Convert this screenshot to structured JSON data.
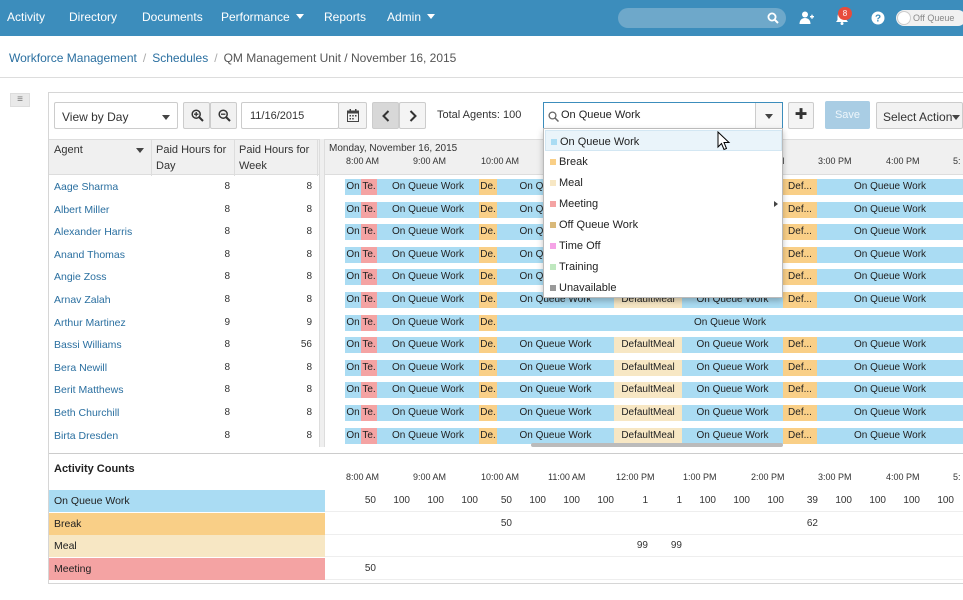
{
  "nav": {
    "items": [
      "Activity",
      "Directory",
      "Documents",
      "Performance",
      "Reports",
      "Admin"
    ],
    "notifications_count": "8",
    "status_toggle": "Off Queue"
  },
  "breadcrumb": {
    "workforce": "Workforce Management",
    "schedules": "Schedules",
    "current": "QM Management Unit / November 16, 2015"
  },
  "toolbar": {
    "view": "View by Day",
    "date": "11/16/2015",
    "total_agents": "Total Agents: 100",
    "activity": "On Queue Work",
    "save": "Save",
    "select_action": "Select Action"
  },
  "dropdown": {
    "items": [
      {
        "label": "On Queue Work",
        "color": "#aadcf3"
      },
      {
        "label": "Break",
        "color": "#f9cf87"
      },
      {
        "label": "Meal",
        "color": "#f7e7c4"
      },
      {
        "label": "Meeting",
        "color": "#f4a3a3"
      },
      {
        "label": "Off Queue Work",
        "color": "#d9b97a"
      },
      {
        "label": "Time Off",
        "color": "#f5a3e6"
      },
      {
        "label": "Training",
        "color": "#bfe8bf"
      },
      {
        "label": "Unavailable",
        "color": "#999999"
      }
    ]
  },
  "grid": {
    "col_agent": "Agent",
    "col_day_1": "Paid Hours for",
    "col_day_2": "Day",
    "col_week_1": "Paid Hours for",
    "col_week_2": "Week",
    "date_label": "Monday, November 16, 2015",
    "ticks": [
      "8:00 AM",
      "9:00 AM",
      "10:00 AM",
      "11:00 AM",
      "12:00 PM",
      "1:00 PM",
      "2:00 PM",
      "3:00 PM",
      "4:00 PM",
      "5:"
    ],
    "agents": [
      {
        "name": "Aage Sharma",
        "day": "8",
        "week": "8"
      },
      {
        "name": "Albert Miller",
        "day": "8",
        "week": "8"
      },
      {
        "name": "Alexander Harris",
        "day": "8",
        "week": "8"
      },
      {
        "name": "Anand Thomas",
        "day": "8",
        "week": "8"
      },
      {
        "name": "Angie Zoss",
        "day": "8",
        "week": "8"
      },
      {
        "name": "Arnav Zalah",
        "day": "8",
        "week": "8"
      },
      {
        "name": "Arthur Martinez",
        "day": "9",
        "week": "9"
      },
      {
        "name": "Bassi Williams",
        "day": "8",
        "week": "56"
      },
      {
        "name": "Bera Newill",
        "day": "8",
        "week": "8"
      },
      {
        "name": "Berit Matthews",
        "day": "8",
        "week": "8"
      },
      {
        "name": "Beth Churchill",
        "day": "8",
        "week": "8"
      },
      {
        "name": "Birta Dresden",
        "day": "8",
        "week": "8"
      }
    ],
    "seg_text": {
      "on": "On",
      "te": "Te.",
      "oq": "On Queue Work",
      "de": "De.",
      "defmeal": "DefaultMeal",
      "def": "Def..."
    }
  },
  "counts": {
    "title": "Activity Counts",
    "rows": [
      {
        "label": "On Queue Work",
        "color": "#aadcf3",
        "values": [
          "50",
          "100",
          "100",
          "100",
          "50",
          "100",
          "100",
          "100",
          "1",
          "1",
          "100",
          "100",
          "100",
          "39",
          "100",
          "100",
          "100",
          "100"
        ]
      },
      {
        "label": "Break",
        "color": "#f9cf87",
        "values": [
          "",
          "",
          "",
          "",
          "50",
          "",
          "",
          "",
          "",
          "",
          "",
          "",
          "",
          "62",
          "",
          "",
          "",
          ""
        ]
      },
      {
        "label": "Meal",
        "color": "#f7e7c4",
        "values": [
          "",
          "",
          "",
          "",
          "",
          "",
          "",
          "",
          "99",
          "99",
          "",
          "",
          "",
          "",
          "",
          "",
          "",
          ""
        ]
      },
      {
        "label": "Meeting",
        "color": "#f4a3a3",
        "values": [
          "50",
          "",
          "",
          "",
          "",
          "",
          "",
          "",
          "",
          "",
          "",
          "",
          "",
          "",
          "",
          "",
          "",
          ""
        ]
      }
    ]
  }
}
